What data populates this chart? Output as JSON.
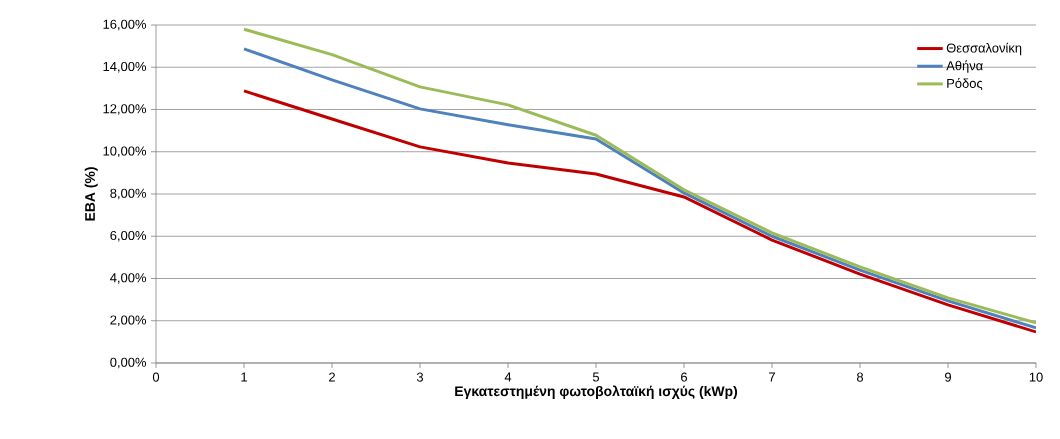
{
  "chart_data": {
    "type": "line",
    "xlabel": "Εγκατεστημένη φωτοβολταϊκή ισχύς (kWp)",
    "ylabel": "ΕΒΑ (%)",
    "x": [
      1,
      2,
      3,
      4,
      5,
      6,
      7,
      8,
      9,
      10
    ],
    "series": [
      {
        "name": "Θεσσαλονίκη",
        "color": "#c00000",
        "values": [
          12.88,
          11.55,
          10.23,
          9.47,
          8.95,
          7.86,
          5.82,
          4.21,
          2.75,
          1.47
        ]
      },
      {
        "name": "Αθήνα",
        "color": "#4f81bd",
        "values": [
          14.87,
          13.4,
          12.03,
          11.28,
          10.6,
          8.05,
          6.0,
          4.4,
          2.94,
          1.66
        ]
      },
      {
        "name": "Ρόδος",
        "color": "#9bbb59",
        "values": [
          15.8,
          14.6,
          13.07,
          12.22,
          10.78,
          8.2,
          6.16,
          4.55,
          3.08,
          1.9
        ]
      }
    ],
    "xlim": [
      0,
      10
    ],
    "xticks": [
      0,
      1,
      2,
      3,
      4,
      5,
      6,
      7,
      8,
      9,
      10
    ],
    "ylim": [
      0,
      16
    ],
    "yticks": [
      {
        "value": 0,
        "label": "0,00%"
      },
      {
        "value": 2,
        "label": "2,00%"
      },
      {
        "value": 4,
        "label": "4,00%"
      },
      {
        "value": 6,
        "label": "6,00%"
      },
      {
        "value": 8,
        "label": "8,00%"
      },
      {
        "value": 10,
        "label": "10,00%"
      },
      {
        "value": 12,
        "label": "12,00%"
      },
      {
        "value": 14,
        "label": "14,00%"
      },
      {
        "value": 16,
        "label": "16,00%"
      }
    ],
    "grid": "y",
    "legend": "top right"
  }
}
